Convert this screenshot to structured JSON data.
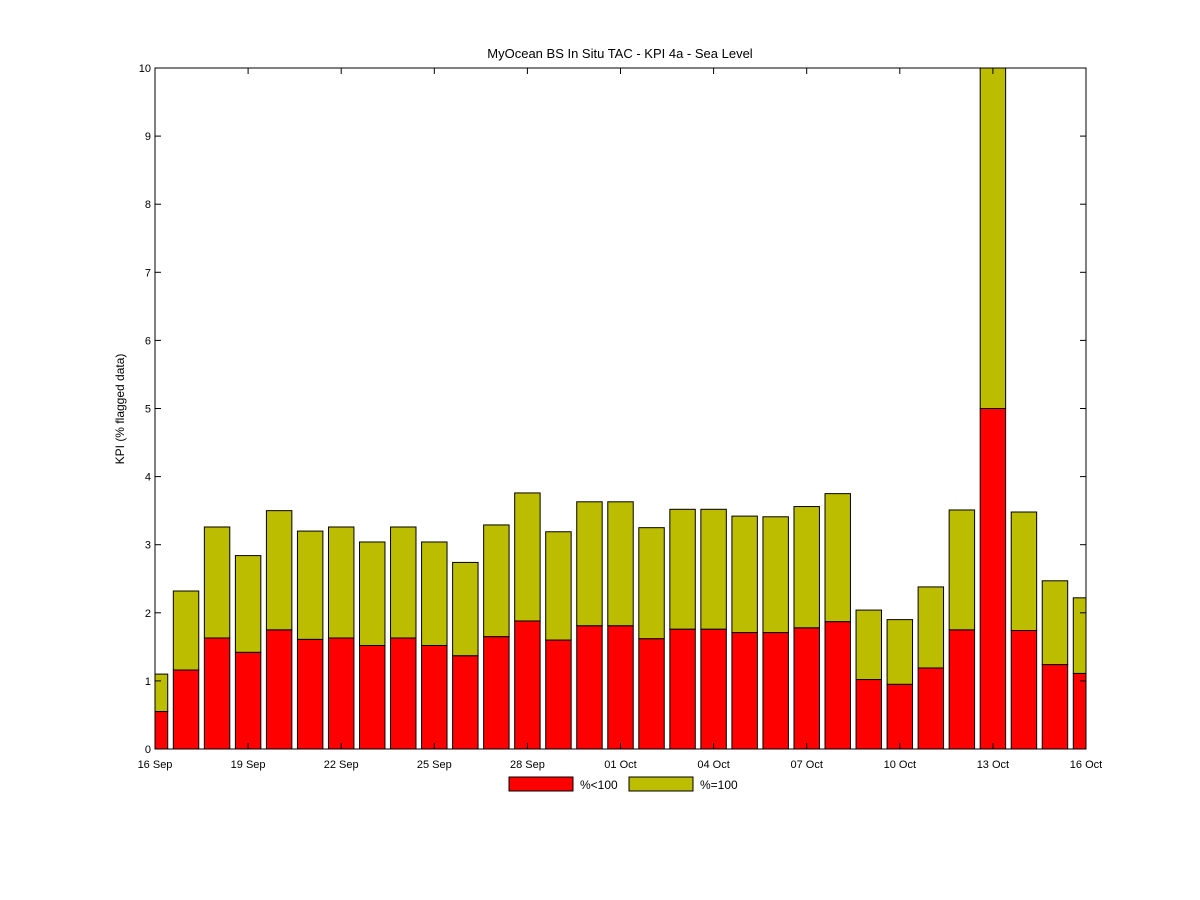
{
  "chart_data": {
    "type": "bar",
    "stacked": true,
    "title": "MyOcean  BS In Situ TAC - KPI 4a - Sea Level",
    "xlabel": "",
    "ylabel": "KPI (% flagged data)",
    "ylim": [
      0,
      10
    ],
    "yticks": [
      "0",
      "1",
      "2",
      "3",
      "4",
      "5",
      "6",
      "7",
      "8",
      "9",
      "10"
    ],
    "xlim": [
      "2012-09-16",
      "2012-10-16"
    ],
    "xticks": [
      "16 Sep",
      "19 Sep",
      "22 Sep",
      "25 Sep",
      "28 Sep",
      "01 Oct",
      "04 Oct",
      "07 Oct",
      "10 Oct",
      "13 Oct",
      "16 Oct"
    ],
    "grid": false,
    "legend_position": "bottom-center",
    "dates": [
      "16 Sep",
      "17 Sep",
      "18 Sep",
      "19 Sep",
      "20 Sep",
      "21 Sep",
      "22 Sep",
      "23 Sep",
      "24 Sep",
      "25 Sep",
      "26 Sep",
      "27 Sep",
      "28 Sep",
      "29 Sep",
      "30 Sep",
      "01 Oct",
      "02 Oct",
      "03 Oct",
      "04 Oct",
      "05 Oct",
      "06 Oct",
      "07 Oct",
      "08 Oct",
      "09 Oct",
      "10 Oct",
      "11 Oct",
      "12 Oct",
      "13 Oct",
      "14 Oct",
      "15 Oct",
      "16 Oct"
    ],
    "series": [
      {
        "name": "%<100",
        "color": "#ff0000",
        "values": [
          0.55,
          1.16,
          1.63,
          1.42,
          1.75,
          1.61,
          1.63,
          1.52,
          1.63,
          1.52,
          1.37,
          1.65,
          1.88,
          1.6,
          1.81,
          1.81,
          1.62,
          1.76,
          1.76,
          1.71,
          1.71,
          1.78,
          1.87,
          1.02,
          0.95,
          1.19,
          1.75,
          5.0,
          1.74,
          1.24,
          1.11
        ]
      },
      {
        "name": "%=100",
        "color": "#bdbd00",
        "values": [
          0.55,
          1.16,
          1.63,
          1.42,
          1.75,
          1.59,
          1.63,
          1.52,
          1.63,
          1.52,
          1.37,
          1.64,
          1.88,
          1.59,
          1.82,
          1.82,
          1.63,
          1.76,
          1.76,
          1.71,
          1.7,
          1.78,
          1.88,
          1.02,
          0.95,
          1.19,
          1.76,
          5.0,
          1.74,
          1.23,
          1.11
        ]
      }
    ]
  }
}
